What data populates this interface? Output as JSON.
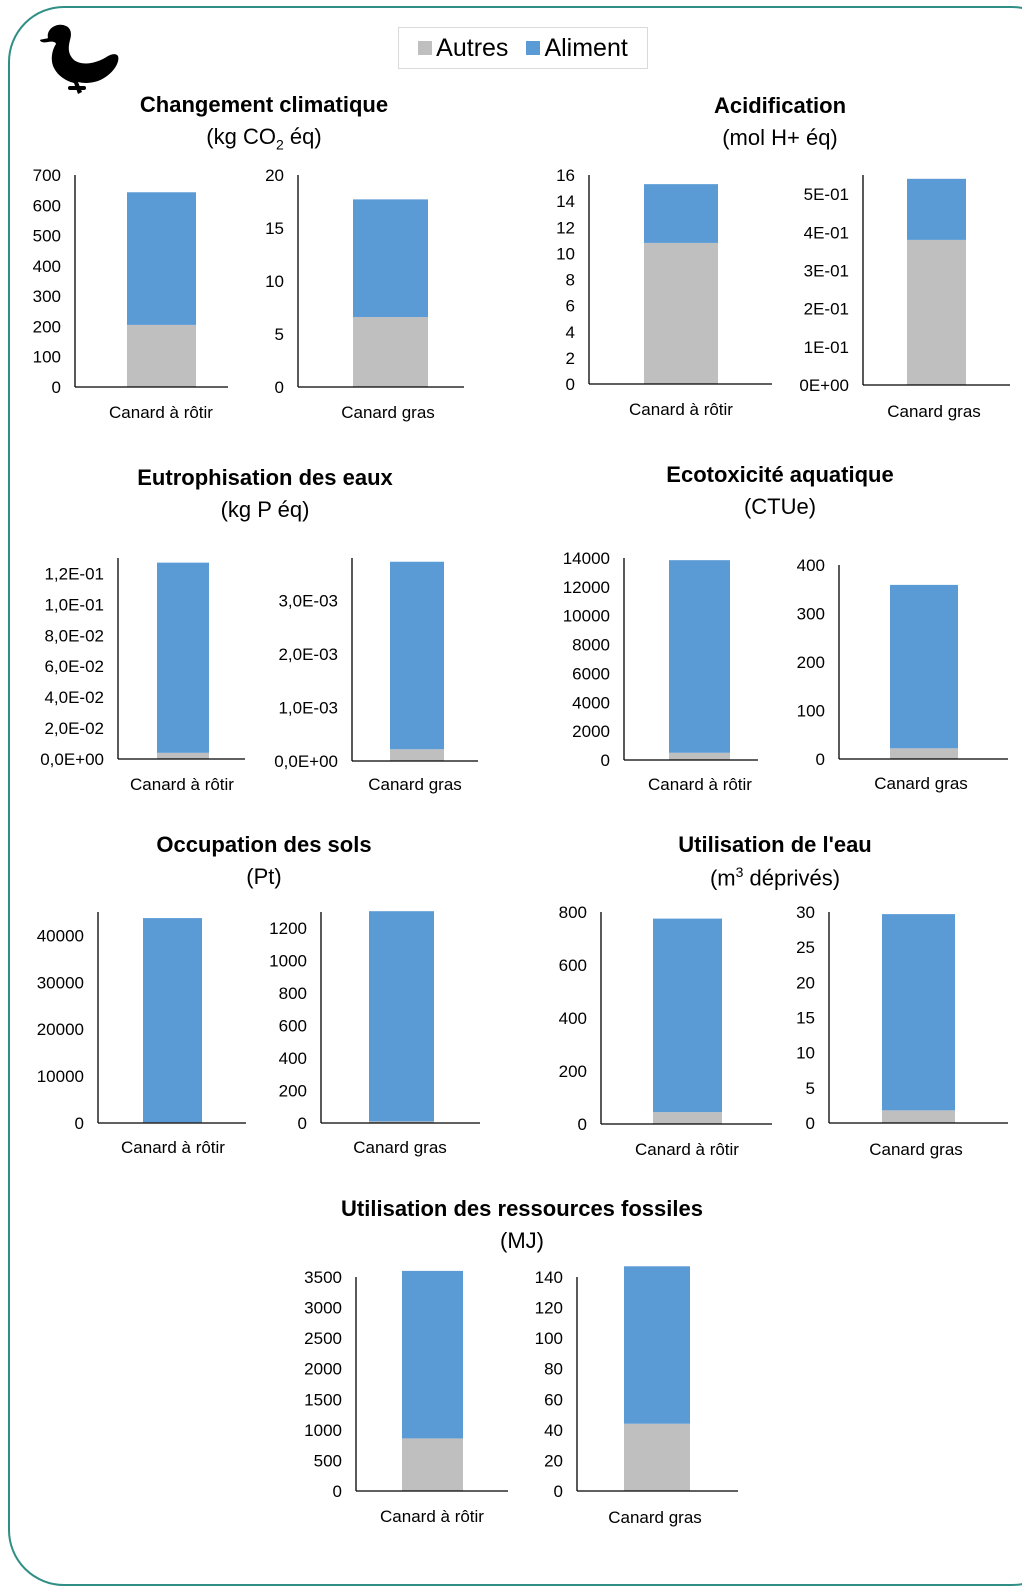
{
  "legend": [
    {
      "name": "Autres",
      "color": "#bfbfbf"
    },
    {
      "name": "Aliment",
      "color": "#5b9bd5"
    }
  ],
  "icon": "duck-icon",
  "chart_data": [
    {
      "title": "Changement climatique",
      "unit_parts": [
        "(kg CO",
        "2",
        " éq)"
      ],
      "panels": [
        {
          "type": "bar",
          "stacked": true,
          "category": "Canard à rôtir",
          "ticks": [
            "0",
            "100",
            "200",
            "300",
            "400",
            "500",
            "600",
            "700"
          ],
          "ylim": [
            0,
            700
          ],
          "series": [
            {
              "name": "Autres",
              "values": [
                205
              ]
            },
            {
              "name": "Aliment",
              "values": [
                438
              ]
            }
          ]
        },
        {
          "type": "bar",
          "stacked": true,
          "category": "Canard gras",
          "ticks": [
            "0",
            "5",
            "10",
            "15",
            "20"
          ],
          "ylim": [
            0,
            20
          ],
          "series": [
            {
              "name": "Autres",
              "values": [
                6.6
              ]
            },
            {
              "name": "Aliment",
              "values": [
                11.1
              ]
            }
          ]
        }
      ]
    },
    {
      "title": "Acidification",
      "unit": "(mol H+ éq)",
      "panels": [
        {
          "type": "bar",
          "stacked": true,
          "category": "Canard à rôtir",
          "ticks": [
            "0",
            "2",
            "4",
            "6",
            "8",
            "10",
            "12",
            "14",
            "16"
          ],
          "ylim": [
            0,
            16
          ],
          "series": [
            {
              "name": "Autres",
              "values": [
                10.8
              ]
            },
            {
              "name": "Aliment",
              "values": [
                4.5
              ]
            }
          ]
        },
        {
          "type": "bar",
          "stacked": true,
          "category": "Canard gras",
          "ticks": [
            "0E+00",
            "1E-01",
            "2E-01",
            "3E-01",
            "4E-01",
            "5E-01"
          ],
          "ylim": [
            0,
            0.55
          ],
          "series": [
            {
              "name": "Autres",
              "values": [
                0.38
              ]
            },
            {
              "name": "Aliment",
              "values": [
                0.16
              ]
            }
          ]
        }
      ]
    },
    {
      "title": "Eutrophisation des eaux",
      "unit": "(kg P éq)",
      "panels": [
        {
          "type": "bar",
          "stacked": true,
          "category": "Canard à rôtir",
          "ticks": [
            "0,0E+00",
            "2,0E-02",
            "4,0E-02",
            "6,0E-02",
            "8,0E-02",
            "1,0E-01",
            "1,2E-01"
          ],
          "ylim": [
            0,
            0.13
          ],
          "series": [
            {
              "name": "Autres",
              "values": [
                0.004
              ]
            },
            {
              "name": "Aliment",
              "values": [
                0.123
              ]
            }
          ]
        },
        {
          "type": "bar",
          "stacked": true,
          "category": "Canard gras",
          "ticks": [
            "0,0E+00",
            "1,0E-03",
            "2,0E-03",
            "3,0E-03"
          ],
          "ylim": [
            0,
            0.0038
          ],
          "series": [
            {
              "name": "Autres",
              "values": [
                0.00022
              ]
            },
            {
              "name": "Aliment",
              "values": [
                0.00351
              ]
            }
          ]
        }
      ]
    },
    {
      "title": "Ecotoxicité aquatique",
      "unit": "(CTUe)",
      "panels": [
        {
          "type": "bar",
          "stacked": true,
          "category": "Canard à rôtir",
          "ticks": [
            "0",
            "2000",
            "4000",
            "6000",
            "8000",
            "10000",
            "12000",
            "14000"
          ],
          "ylim": [
            0,
            14000
          ],
          "series": [
            {
              "name": "Autres",
              "values": [
                500
              ]
            },
            {
              "name": "Aliment",
              "values": [
                13350
              ]
            }
          ]
        },
        {
          "type": "bar",
          "stacked": true,
          "category": "Canard gras",
          "ticks": [
            "0",
            "100",
            "200",
            "300",
            "400"
          ],
          "ylim": [
            0,
            400
          ],
          "series": [
            {
              "name": "Autres",
              "values": [
                22
              ]
            },
            {
              "name": "Aliment",
              "values": [
                337
              ]
            }
          ]
        }
      ]
    },
    {
      "title": "Occupation des sols",
      "unit": "(Pt)",
      "panels": [
        {
          "type": "bar",
          "stacked": true,
          "category": "Canard à rôtir",
          "ticks": [
            "0",
            "10000",
            "20000",
            "30000",
            "40000"
          ],
          "ylim": [
            0,
            45000
          ],
          "series": [
            {
              "name": "Autres",
              "values": [
                150
              ]
            },
            {
              "name": "Aliment",
              "values": [
                43550
              ]
            }
          ]
        },
        {
          "type": "bar",
          "stacked": true,
          "category": "Canard gras",
          "ticks": [
            "0",
            "200",
            "400",
            "600",
            "800",
            "1000",
            "1200"
          ],
          "ylim": [
            0,
            1300
          ],
          "series": [
            {
              "name": "Autres",
              "values": [
                10
              ]
            },
            {
              "name": "Aliment",
              "values": [
                1295
              ]
            }
          ]
        }
      ]
    },
    {
      "title": "Utilisation de l'eau",
      "unit_parts": [
        "(m",
        "3",
        " déprivés)"
      ],
      "panels": [
        {
          "type": "bar",
          "stacked": true,
          "category": "Canard à rôtir",
          "ticks": [
            "0",
            "200",
            "400",
            "600",
            "800"
          ],
          "ylim": [
            0,
            800
          ],
          "series": [
            {
              "name": "Autres",
              "values": [
                45
              ]
            },
            {
              "name": "Aliment",
              "values": [
                730
              ]
            }
          ]
        },
        {
          "type": "bar",
          "stacked": true,
          "category": "Canard gras",
          "ticks": [
            "0",
            "5",
            "10",
            "15",
            "20",
            "25",
            "30"
          ],
          "ylim": [
            0,
            30
          ],
          "series": [
            {
              "name": "Autres",
              "values": [
                1.8
              ]
            },
            {
              "name": "Aliment",
              "values": [
                27.9
              ]
            }
          ]
        }
      ]
    },
    {
      "title": "Utilisation des ressources fossiles",
      "unit": "(MJ)",
      "panels": [
        {
          "type": "bar",
          "stacked": true,
          "category": "Canard à rôtir",
          "ticks": [
            "0",
            "500",
            "1000",
            "1500",
            "2000",
            "2500",
            "3000",
            "3500"
          ],
          "ylim": [
            0,
            3500
          ],
          "series": [
            {
              "name": "Autres",
              "values": [
                860
              ]
            },
            {
              "name": "Aliment",
              "values": [
                2740
              ]
            }
          ]
        },
        {
          "type": "bar",
          "stacked": true,
          "category": "Canard gras",
          "ticks": [
            "0",
            "20",
            "40",
            "60",
            "80",
            "100",
            "120",
            "140"
          ],
          "ylim": [
            0,
            140
          ],
          "series": [
            {
              "name": "Autres",
              "values": [
                44
              ]
            },
            {
              "name": "Aliment",
              "values": [
                103
              ]
            }
          ]
        }
      ]
    }
  ]
}
